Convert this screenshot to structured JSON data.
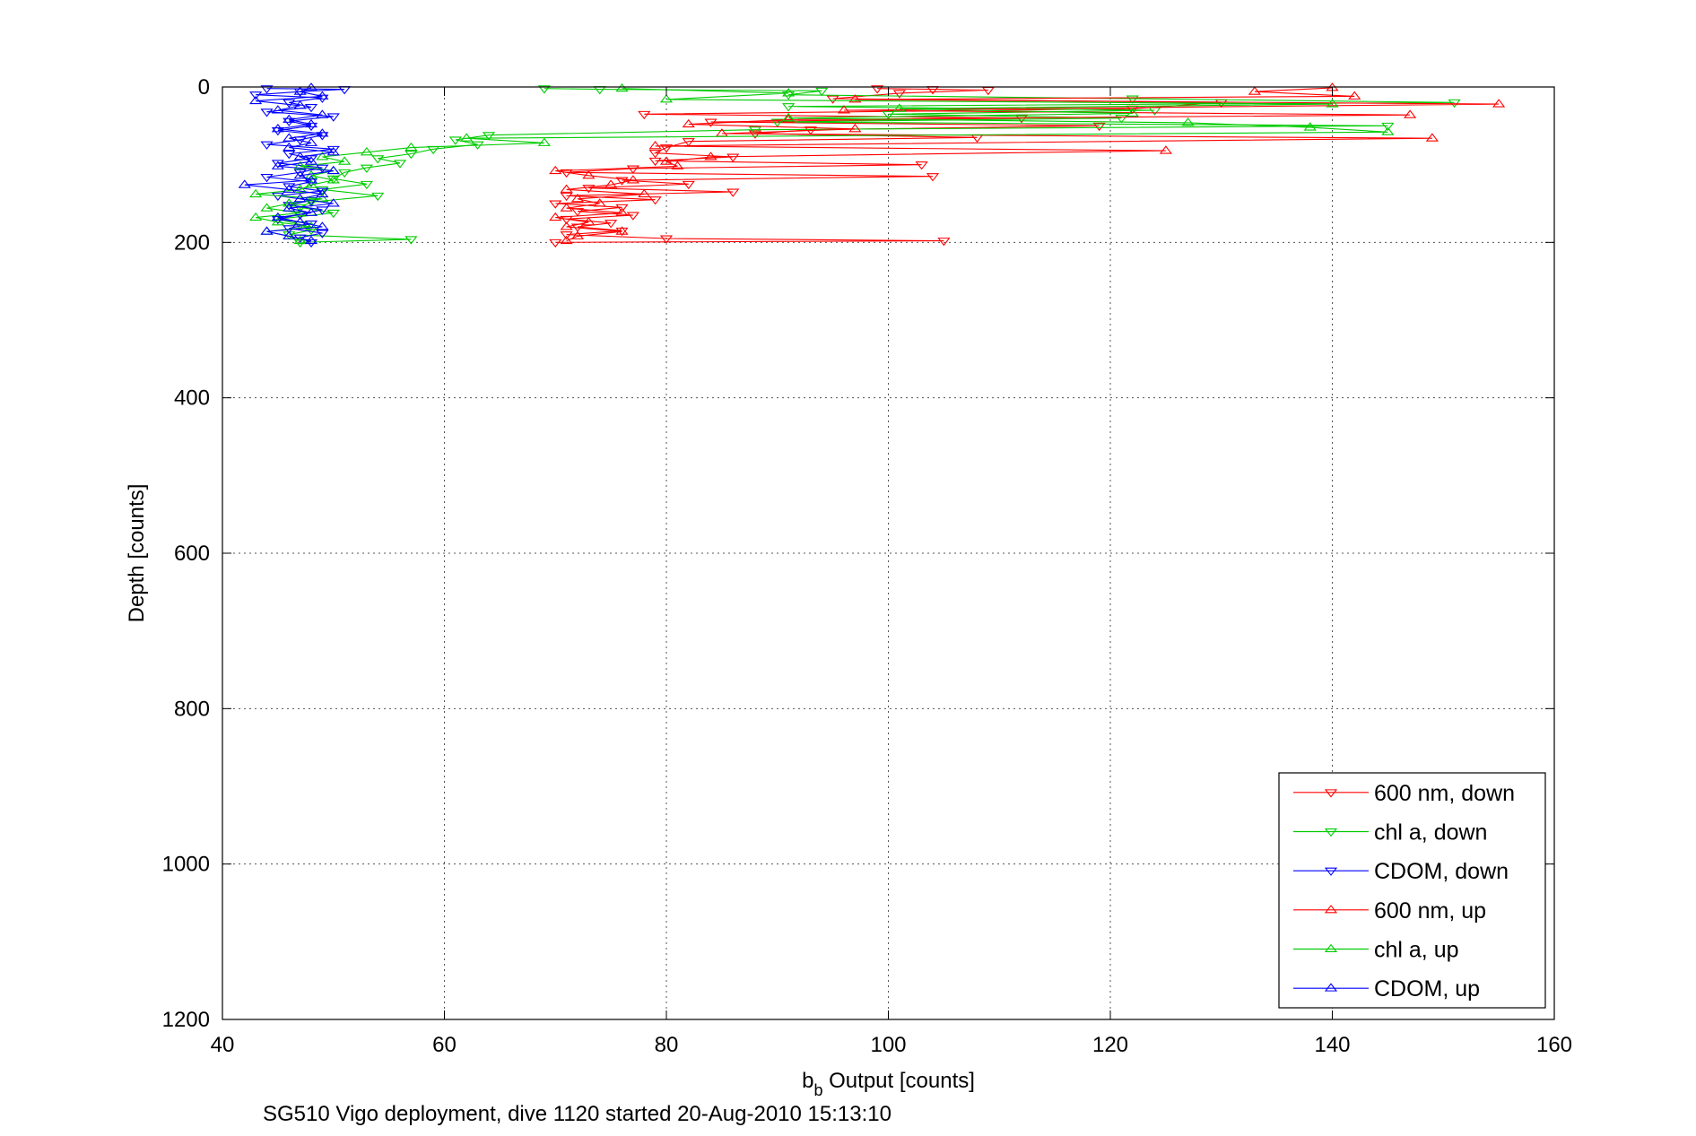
{
  "chart_data": {
    "type": "line",
    "xlabel_main": "b",
    "xlabel_sub": "b",
    "xlabel_rest": " Output [counts]",
    "ylabel": "Depth [counts]",
    "caption": "SG510 Vigo deployment, dive 1120 started 20-Aug-2010 15:13:10",
    "xlim": [
      40,
      160
    ],
    "ylim": [
      0,
      1200
    ],
    "y_reversed": true,
    "grid": true,
    "legend_position": "bottom-right",
    "x_ticks": [
      "40",
      "60",
      "80",
      "100",
      "120",
      "140",
      "160"
    ],
    "y_ticks": [
      "0",
      "200",
      "400",
      "600",
      "800",
      "1000",
      "1200"
    ],
    "series": [
      {
        "name": "600 nm, down",
        "color": "#ff0000",
        "marker": "triangle-down",
        "points": [
          [
            99,
            2
          ],
          [
            104,
            3
          ],
          [
            109,
            4
          ],
          [
            101,
            8
          ],
          [
            95,
            15
          ],
          [
            130,
            20
          ],
          [
            122,
            28
          ],
          [
            78,
            35
          ],
          [
            112,
            40
          ],
          [
            84,
            45
          ],
          [
            119,
            50
          ],
          [
            93,
            55
          ],
          [
            88,
            60
          ],
          [
            108,
            65
          ],
          [
            82,
            70
          ],
          [
            80,
            78
          ],
          [
            79,
            85
          ],
          [
            86,
            90
          ],
          [
            79,
            95
          ],
          [
            103,
            100
          ],
          [
            77,
            105
          ],
          [
            71,
            110
          ],
          [
            104,
            115
          ],
          [
            76,
            120
          ],
          [
            82,
            125
          ],
          [
            73,
            130
          ],
          [
            86,
            135
          ],
          [
            71,
            140
          ],
          [
            79,
            145
          ],
          [
            70,
            150
          ],
          [
            76,
            155
          ],
          [
            72,
            160
          ],
          [
            77,
            165
          ],
          [
            71,
            170
          ],
          [
            75,
            175
          ],
          [
            72,
            180
          ],
          [
            76,
            185
          ],
          [
            71,
            190
          ],
          [
            80,
            195
          ],
          [
            105,
            198
          ],
          [
            70,
            200
          ]
        ]
      },
      {
        "name": "chl a, down",
        "color": "#00cc00",
        "marker": "triangle-down",
        "points": [
          [
            69,
            2
          ],
          [
            74,
            3
          ],
          [
            94,
            5
          ],
          [
            91,
            10
          ],
          [
            122,
            15
          ],
          [
            151,
            20
          ],
          [
            91,
            25
          ],
          [
            124,
            30
          ],
          [
            100,
            35
          ],
          [
            121,
            40
          ],
          [
            90,
            45
          ],
          [
            145,
            50
          ],
          [
            88,
            55
          ],
          [
            64,
            62
          ],
          [
            61,
            68
          ],
          [
            63,
            74
          ],
          [
            59,
            80
          ],
          [
            57,
            86
          ],
          [
            54,
            92
          ],
          [
            56,
            98
          ],
          [
            53,
            104
          ],
          [
            51,
            110
          ],
          [
            50,
            118
          ],
          [
            53,
            125
          ],
          [
            49,
            132
          ],
          [
            54,
            140
          ],
          [
            48,
            148
          ],
          [
            47,
            155
          ],
          [
            50,
            162
          ],
          [
            45,
            170
          ],
          [
            47,
            177
          ],
          [
            48,
            184
          ],
          [
            46,
            190
          ],
          [
            57,
            196
          ],
          [
            47,
            200
          ]
        ]
      },
      {
        "name": "CDOM, down",
        "color": "#0000ff",
        "marker": "triangle-down",
        "points": [
          [
            44,
            2
          ],
          [
            51,
            3
          ],
          [
            47,
            6
          ],
          [
            43,
            10
          ],
          [
            49,
            14
          ],
          [
            46,
            20
          ],
          [
            48,
            26
          ],
          [
            44,
            32
          ],
          [
            50,
            38
          ],
          [
            46,
            44
          ],
          [
            48,
            50
          ],
          [
            45,
            56
          ],
          [
            49,
            62
          ],
          [
            47,
            68
          ],
          [
            44,
            74
          ],
          [
            50,
            80
          ],
          [
            46,
            86
          ],
          [
            48,
            92
          ],
          [
            45,
            98
          ],
          [
            49,
            104
          ],
          [
            47,
            110
          ],
          [
            44,
            116
          ],
          [
            48,
            122
          ],
          [
            46,
            128
          ],
          [
            49,
            134
          ],
          [
            45,
            140
          ],
          [
            48,
            146
          ],
          [
            46,
            152
          ],
          [
            49,
            158
          ],
          [
            47,
            164
          ],
          [
            45,
            170
          ],
          [
            48,
            176
          ],
          [
            46,
            182
          ],
          [
            49,
            188
          ],
          [
            47,
            194
          ],
          [
            48,
            200
          ]
        ]
      },
      {
        "name": "600 nm, up",
        "color": "#ff0000",
        "marker": "triangle-up",
        "points": [
          [
            71,
            198
          ],
          [
            72,
            192
          ],
          [
            76,
            186
          ],
          [
            71,
            180
          ],
          [
            73,
            174
          ],
          [
            70,
            168
          ],
          [
            76,
            162
          ],
          [
            71,
            156
          ],
          [
            74,
            150
          ],
          [
            72,
            144
          ],
          [
            78,
            138
          ],
          [
            71,
            132
          ],
          [
            75,
            126
          ],
          [
            77,
            120
          ],
          [
            73,
            114
          ],
          [
            70,
            108
          ],
          [
            81,
            102
          ],
          [
            80,
            96
          ],
          [
            84,
            90
          ],
          [
            125,
            82
          ],
          [
            79,
            76
          ],
          [
            149,
            66
          ],
          [
            85,
            60
          ],
          [
            97,
            54
          ],
          [
            82,
            48
          ],
          [
            91,
            42
          ],
          [
            147,
            36
          ],
          [
            96,
            30
          ],
          [
            155,
            22
          ],
          [
            97,
            16
          ],
          [
            142,
            12
          ],
          [
            133,
            6
          ],
          [
            140,
            1
          ]
        ]
      },
      {
        "name": "chl a, up",
        "color": "#00cc00",
        "marker": "triangle-up",
        "points": [
          [
            47,
            198
          ],
          [
            46,
            192
          ],
          [
            44,
            186
          ],
          [
            48,
            180
          ],
          [
            45,
            174
          ],
          [
            43,
            168
          ],
          [
            47,
            162
          ],
          [
            44,
            156
          ],
          [
            46,
            150
          ],
          [
            49,
            144
          ],
          [
            43,
            138
          ],
          [
            47,
            132
          ],
          [
            48,
            126
          ],
          [
            50,
            120
          ],
          [
            48,
            114
          ],
          [
            50,
            108
          ],
          [
            47,
            102
          ],
          [
            51,
            96
          ],
          [
            49,
            90
          ],
          [
            53,
            84
          ],
          [
            57,
            78
          ],
          [
            69,
            72
          ],
          [
            62,
            66
          ],
          [
            145,
            58
          ],
          [
            138,
            52
          ],
          [
            127,
            46
          ],
          [
            91,
            40
          ],
          [
            122,
            34
          ],
          [
            101,
            28
          ],
          [
            140,
            22
          ],
          [
            80,
            16
          ],
          [
            91,
            8
          ],
          [
            76,
            2
          ]
        ]
      },
      {
        "name": "CDOM, up",
        "color": "#0000ff",
        "marker": "triangle-up",
        "points": [
          [
            48,
            198
          ],
          [
            46,
            192
          ],
          [
            44,
            186
          ],
          [
            49,
            180
          ],
          [
            47,
            174
          ],
          [
            45,
            168
          ],
          [
            48,
            162
          ],
          [
            46,
            156
          ],
          [
            50,
            150
          ],
          [
            47,
            144
          ],
          [
            49,
            138
          ],
          [
            46,
            132
          ],
          [
            42,
            126
          ],
          [
            48,
            120
          ],
          [
            47,
            114
          ],
          [
            50,
            108
          ],
          [
            45,
            102
          ],
          [
            48,
            96
          ],
          [
            47,
            90
          ],
          [
            50,
            84
          ],
          [
            46,
            78
          ],
          [
            48,
            72
          ],
          [
            46,
            66
          ],
          [
            49,
            60
          ],
          [
            45,
            54
          ],
          [
            48,
            48
          ],
          [
            46,
            42
          ],
          [
            49,
            36
          ],
          [
            45,
            30
          ],
          [
            47,
            24
          ],
          [
            43,
            18
          ],
          [
            49,
            12
          ],
          [
            47,
            6
          ],
          [
            48,
            1
          ]
        ]
      }
    ]
  }
}
